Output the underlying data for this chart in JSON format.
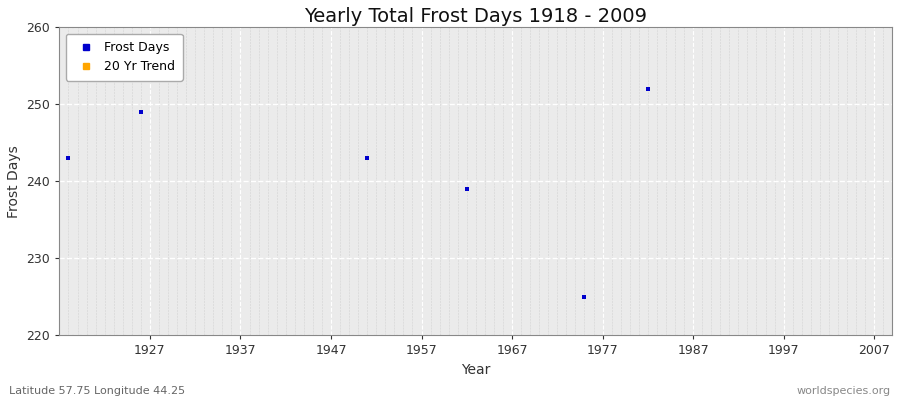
{
  "title": "Yearly Total Frost Days 1918 - 2009",
  "xlabel": "Year",
  "ylabel": "Frost Days",
  "xlim": [
    1917,
    2009
  ],
  "ylim": [
    220,
    260
  ],
  "xticks": [
    1927,
    1937,
    1947,
    1957,
    1967,
    1977,
    1987,
    1997,
    2007
  ],
  "yticks": [
    220,
    230,
    240,
    250,
    260
  ],
  "scatter_x": [
    1918,
    1926,
    1951,
    1962,
    1975,
    1982
  ],
  "scatter_y": [
    243,
    249,
    243,
    239,
    225,
    252
  ],
  "scatter_color": "#0000cc",
  "trend_color": "#ffa500",
  "fig_bg_color": "#ffffff",
  "plot_bg": "#ebebeb",
  "grid_color": "#ffffff",
  "grid_minor_color": "#d8d8d8",
  "spine_color": "#888888",
  "footnote_left": "Latitude 57.75 Longitude 44.25",
  "footnote_right": "worldspecies.org",
  "legend_labels": [
    "Frost Days",
    "20 Yr Trend"
  ],
  "legend_colors": [
    "#0000cc",
    "#ffa500"
  ],
  "title_fontsize": 14,
  "label_fontsize": 10,
  "tick_fontsize": 9,
  "footnote_fontsize": 8
}
